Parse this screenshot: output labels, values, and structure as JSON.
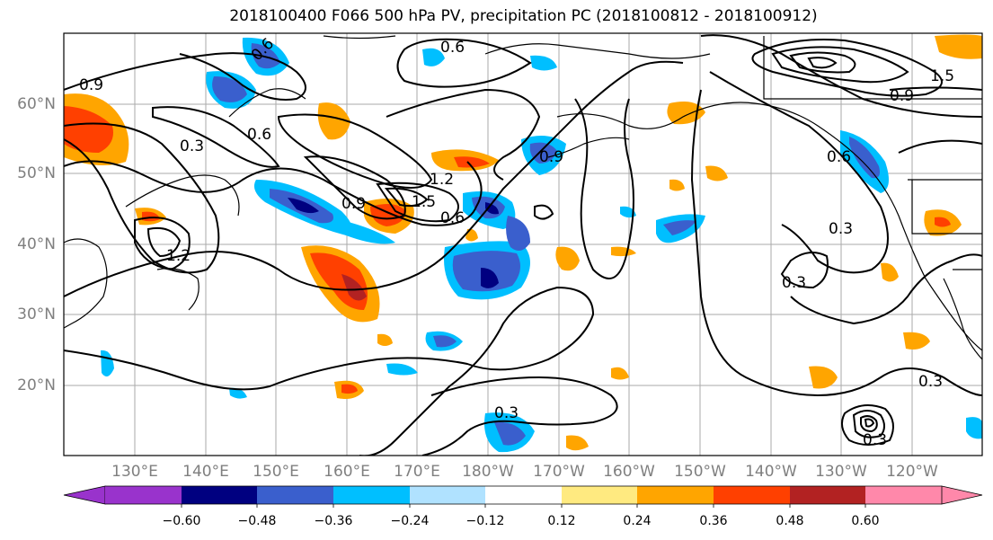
{
  "title": "2018100400 F066 500 hPa PV, precipitation PC (2018100812 - 2018100912)",
  "lat_labels": [
    "60°N",
    "50°N",
    "40°N",
    "30°N",
    "20°N"
  ],
  "lon_labels": [
    "130°E",
    "140°E",
    "150°E",
    "160°E",
    "170°E",
    "180°W",
    "170°W",
    "160°W",
    "150°W",
    "140°W",
    "130°W",
    "120°W"
  ],
  "contour_labels": [
    "0.9",
    "0.6",
    "0.6",
    "1.5",
    "0.9",
    "0.6",
    "0.3",
    "1.2",
    "1.5",
    "0.9",
    "0.6",
    "0.9",
    "0.3",
    "0.3",
    "0.3",
    "0.3",
    "0.6",
    "1.2",
    "0.3"
  ],
  "colorbar": {
    "ticks": [
      "−0.60",
      "−0.48",
      "−0.36",
      "−0.24",
      "−0.12",
      "0.12",
      "0.24",
      "0.36",
      "0.48",
      "0.60"
    ],
    "colors": [
      "#9933cc",
      "#000080",
      "#3a5fcd",
      "#00bfff",
      "#b0e2ff",
      "#ffffff",
      "#ffea80",
      "#ffa500",
      "#ff4000",
      "#b22222",
      "#ff88aa"
    ]
  },
  "colors": {
    "neg_strong": "#000080",
    "neg_mid": "#3a5fcd",
    "neg_light": "#00bfff",
    "neg_faint": "#b0e2ff",
    "pos_faint": "#ffea80",
    "pos_mid": "#ffa500",
    "pos_strong": "#ff4000",
    "pos_max": "#b22222"
  }
}
